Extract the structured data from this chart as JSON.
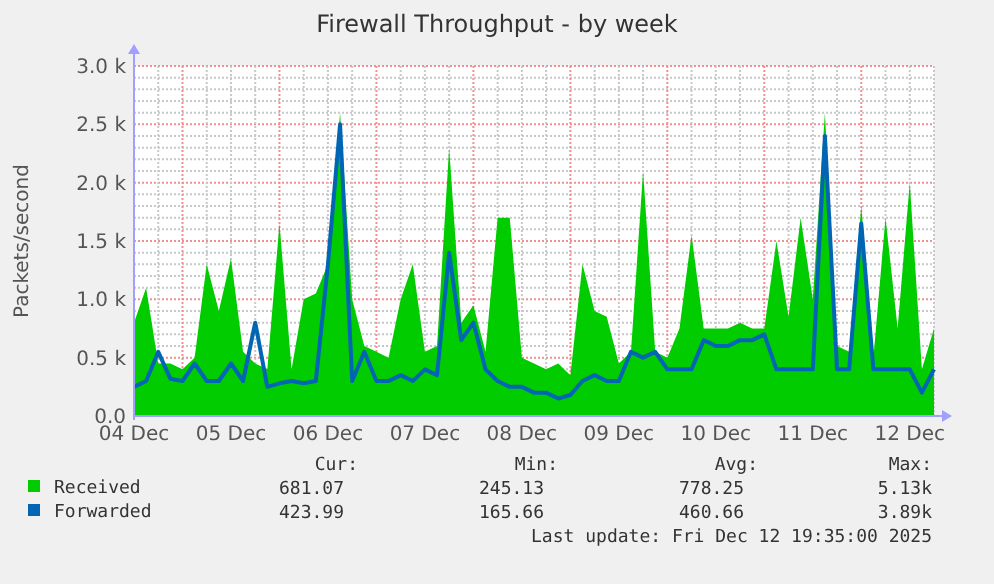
{
  "chart_data": {
    "type": "area",
    "title": "Firewall Throughput - by week",
    "ylabel": "Packets/second",
    "x": [
      "2025-12-04T12:00",
      "2025-12-04T15:00",
      "2025-12-04T18:00",
      "2025-12-04T21:00",
      "2025-12-05T00:00",
      "2025-12-05T03:00",
      "2025-12-05T06:00",
      "2025-12-05T09:00",
      "2025-12-05T12:00",
      "2025-12-05T15:00",
      "2025-12-05T18:00",
      "2025-12-05T21:00",
      "2025-12-06T00:00",
      "2025-12-06T03:00",
      "2025-12-06T06:00",
      "2025-12-06T09:00",
      "2025-12-06T12:00",
      "2025-12-06T15:00",
      "2025-12-06T18:00",
      "2025-12-06T21:00",
      "2025-12-07T00:00",
      "2025-12-07T03:00",
      "2025-12-07T06:00",
      "2025-12-07T09:00",
      "2025-12-07T12:00",
      "2025-12-07T15:00",
      "2025-12-07T18:00",
      "2025-12-07T21:00",
      "2025-12-08T00:00",
      "2025-12-08T03:00",
      "2025-12-08T06:00",
      "2025-12-08T09:00",
      "2025-12-08T12:00",
      "2025-12-08T15:00",
      "2025-12-08T18:00",
      "2025-12-08T21:00",
      "2025-12-09T00:00",
      "2025-12-09T03:00",
      "2025-12-09T06:00",
      "2025-12-09T09:00",
      "2025-12-09T12:00",
      "2025-12-09T15:00",
      "2025-12-09T18:00",
      "2025-12-09T21:00",
      "2025-12-10T00:00",
      "2025-12-10T03:00",
      "2025-12-10T06:00",
      "2025-12-10T09:00",
      "2025-12-10T12:00",
      "2025-12-10T15:00",
      "2025-12-10T18:00",
      "2025-12-10T21:00",
      "2025-12-11T00:00",
      "2025-12-11T03:00",
      "2025-12-11T06:00",
      "2025-12-11T09:00",
      "2025-12-11T12:00",
      "2025-12-11T15:00",
      "2025-12-11T18:00",
      "2025-12-11T21:00",
      "2025-12-12T00:00",
      "2025-12-12T03:00",
      "2025-12-12T06:00",
      "2025-12-12T09:00",
      "2025-12-12T12:00",
      "2025-12-12T15:00",
      "2025-12-12T18:00"
    ],
    "series": [
      {
        "name": "Received",
        "color": "#00cc00",
        "values": [
          800,
          1100,
          450,
          450,
          400,
          500,
          1300,
          900,
          1350,
          550,
          450,
          400,
          1650,
          400,
          1000,
          1050,
          1300,
          2600,
          1000,
          600,
          550,
          500,
          1000,
          1300,
          550,
          600,
          2300,
          800,
          950,
          550,
          1700,
          1700,
          500,
          450,
          400,
          450,
          350,
          1300,
          900,
          850,
          450,
          550,
          2100,
          550,
          500,
          750,
          1550,
          750,
          750,
          750,
          800,
          750,
          750,
          1500,
          850,
          1700,
          1000,
          2600,
          600,
          550,
          1800,
          500,
          1700,
          750,
          2000,
          400,
          750
        ]
      },
      {
        "name": "Forwarded",
        "type": "line",
        "color": "#0066b3",
        "values": [
          250,
          300,
          550,
          320,
          300,
          450,
          300,
          300,
          450,
          300,
          800,
          250,
          280,
          300,
          280,
          300,
          1300,
          2500,
          300,
          550,
          300,
          300,
          350,
          300,
          400,
          350,
          1400,
          650,
          800,
          400,
          300,
          250,
          250,
          200,
          200,
          150,
          180,
          300,
          350,
          300,
          300,
          550,
          500,
          550,
          400,
          400,
          400,
          650,
          600,
          600,
          650,
          650,
          700,
          400,
          400,
          400,
          400,
          2400,
          400,
          400,
          1650,
          400,
          400,
          400,
          400,
          200,
          400
        ]
      }
    ],
    "xlim": [
      "2025-12-04T12:00",
      "2025-12-12T18:00"
    ],
    "xticks": [
      {
        "value": "2025-12-04T12:00",
        "label": "04 Dec"
      },
      {
        "value": "2025-12-05T12:00",
        "label": "05 Dec"
      },
      {
        "value": "2025-12-06T12:00",
        "label": "06 Dec"
      },
      {
        "value": "2025-12-07T12:00",
        "label": "07 Dec"
      },
      {
        "value": "2025-12-08T12:00",
        "label": "08 Dec"
      },
      {
        "value": "2025-12-09T12:00",
        "label": "09 Dec"
      },
      {
        "value": "2025-12-10T12:00",
        "label": "10 Dec"
      },
      {
        "value": "2025-12-11T12:00",
        "label": "11 Dec"
      },
      {
        "value": "2025-12-12T12:00",
        "label": "12 Dec"
      }
    ],
    "ylim": [
      0,
      3000
    ],
    "yticks": [
      {
        "value": 0,
        "label": "0.0"
      },
      {
        "value": 500,
        "label": "0.5 k"
      },
      {
        "value": 1000,
        "label": "1.0 k"
      },
      {
        "value": 1500,
        "label": "1.5 k"
      },
      {
        "value": 2000,
        "label": "2.0 k"
      },
      {
        "value": 2500,
        "label": "2.5 k"
      },
      {
        "value": 3000,
        "label": "3.0 k"
      }
    ],
    "grid": true,
    "legend": "bottom",
    "annotations": [
      "Cur:",
      "Min:",
      "Avg:",
      "Max:",
      "681.07",
      "245.13",
      "778.25",
      "5.13k",
      "423.99",
      "165.66",
      "460.66",
      "3.89k",
      "Last update: Fri Dec 12 19:35:00 2025"
    ]
  }
}
